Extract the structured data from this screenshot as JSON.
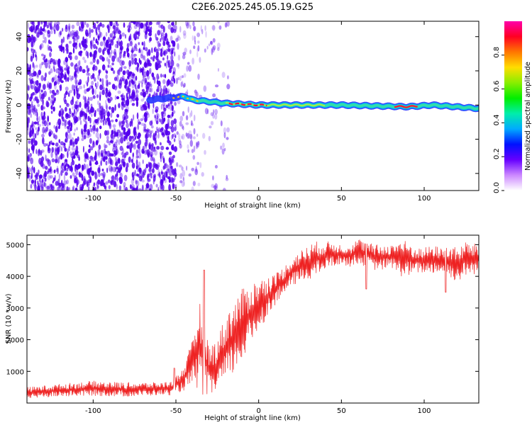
{
  "title": "C2E6.2025.245.05.19.G25",
  "colors": {
    "snr_line": "#ee2222",
    "spectrum_points": "#5500ee",
    "ridge_core": "#ff1133",
    "ridge_mid": "#33ddaa",
    "ridge_outer": "#2233ff"
  },
  "chart_data": [
    {
      "type": "heatmap",
      "name": "spectrogram",
      "xlabel": "Height of straight line (km)",
      "ylabel": "Frequency (Hz)",
      "xlim": [
        -140,
        133
      ],
      "ylim": [
        -50,
        49
      ],
      "xticks": [
        -100,
        -50,
        0,
        50,
        100
      ],
      "yticks": [
        -40,
        -20,
        0,
        20,
        40
      ],
      "ridge": {
        "start_km": -66,
        "frequency_track": [
          {
            "x": -66,
            "y": 3
          },
          {
            "x": -55,
            "y": 4
          },
          {
            "x": -45,
            "y": 5
          },
          {
            "x": -40,
            "y": 3
          },
          {
            "x": -30,
            "y": 2
          },
          {
            "x": -20,
            "y": 1
          },
          {
            "x": 0,
            "y": 0
          },
          {
            "x": 50,
            "y": 0
          },
          {
            "x": 90,
            "y": -1
          },
          {
            "x": 105,
            "y": 0
          },
          {
            "x": 133,
            "y": -2
          }
        ]
      },
      "colorbar": {
        "label": "Normalized spectral amplitude",
        "ticks": [
          "0.0",
          "0.2",
          "0.4",
          "0.6",
          "0.8"
        ],
        "range": [
          0,
          1
        ],
        "stops": [
          "#ffffff",
          "#cc88ff",
          "#6600ff",
          "#0011ff",
          "#00aaff",
          "#00eeaa",
          "#00ee00",
          "#88ee00",
          "#ffdd00",
          "#ff7700",
          "#ff0022",
          "#ff00aa"
        ]
      }
    },
    {
      "type": "line",
      "name": "snr",
      "xlabel": "Height of straight line (km)",
      "ylabel": "SNR (10 * v/v)",
      "xlim": [
        -140,
        133
      ],
      "ylim": [
        0,
        5300
      ],
      "xticks": [
        -100,
        -50,
        0,
        50,
        100
      ],
      "yticks": [
        1000,
        2000,
        3000,
        4000,
        5000
      ],
      "envelope": {
        "x": [
          -140,
          -120,
          -100,
          -80,
          -60,
          -52,
          -45,
          -40,
          -36,
          -33,
          -30,
          -26,
          -22,
          -18,
          -14,
          -10,
          -5,
          0,
          5,
          10,
          15,
          20,
          25,
          30,
          35,
          40,
          45,
          50,
          55,
          60,
          65,
          70,
          75,
          80,
          85,
          90,
          95,
          100,
          105,
          110,
          115,
          120,
          125,
          133
        ],
        "low": [
          150,
          200,
          230,
          200,
          250,
          250,
          400,
          500,
          400,
          200,
          150,
          300,
          500,
          700,
          1000,
          1300,
          1800,
          2300,
          2700,
          3100,
          3400,
          3700,
          3800,
          3900,
          4000,
          4200,
          4300,
          4400,
          4300,
          4400,
          4300,
          4200,
          4200,
          4300,
          4000,
          4000,
          4100,
          4100,
          4100,
          4100,
          4000,
          3800,
          4000,
          4100
        ],
        "high": [
          500,
          600,
          700,
          650,
          650,
          700,
          1200,
          2000,
          3300,
          2800,
          1800,
          2000,
          2500,
          3000,
          3300,
          3600,
          3800,
          3900,
          4000,
          4100,
          4300,
          4600,
          4800,
          5000,
          5100,
          5100,
          5100,
          5000,
          5000,
          5200,
          5100,
          5000,
          5000,
          5000,
          5200,
          5100,
          4900,
          4900,
          5000,
          4900,
          5000,
          4900,
          5100,
          5000
        ]
      },
      "spikes": [
        {
          "x": -33,
          "y": 4200
        },
        {
          "x": -51,
          "y": 1100
        },
        {
          "x": 65,
          "y": 3600
        },
        {
          "x": 113,
          "y": 3500
        }
      ]
    }
  ]
}
